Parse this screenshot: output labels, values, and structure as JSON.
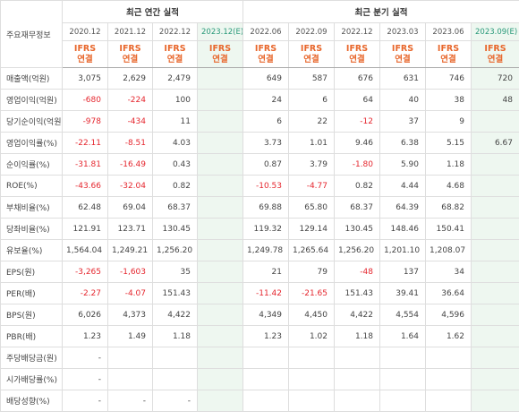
{
  "header": {
    "corner_label": "주요재무정보",
    "annual_group_label": "최근 연간 실적",
    "quarter_group_label": "최근 분기 실적",
    "annual_periods": [
      "2020.12",
      "2021.12",
      "2022.12",
      "2023.12(E)"
    ],
    "quarter_periods": [
      "2022.06",
      "2022.09",
      "2022.12",
      "2023.03",
      "2023.06",
      "2023.09(E)"
    ],
    "ifrs_line1": "IFRS",
    "ifrs_line2": "연결"
  },
  "estimate_columns": [
    3,
    9
  ],
  "rows": [
    {
      "label": "매출액(억원)",
      "values": [
        "3,075",
        "2,629",
        "2,479",
        "",
        "649",
        "587",
        "676",
        "631",
        "746",
        "720"
      ]
    },
    {
      "label": "영업이익(억원)",
      "values": [
        "-680",
        "-224",
        "100",
        "",
        "24",
        "6",
        "64",
        "40",
        "38",
        "48"
      ]
    },
    {
      "label": "당기순이익(억원)",
      "values": [
        "-978",
        "-434",
        "11",
        "",
        "6",
        "22",
        "-12",
        "37",
        "9",
        ""
      ]
    },
    {
      "label": "영업이익률(%)",
      "values": [
        "-22.11",
        "-8.51",
        "4.03",
        "",
        "3.73",
        "1.01",
        "9.46",
        "6.38",
        "5.15",
        "6.67"
      ]
    },
    {
      "label": "순이익률(%)",
      "values": [
        "-31.81",
        "-16.49",
        "0.43",
        "",
        "0.87",
        "3.79",
        "-1.80",
        "5.90",
        "1.18",
        ""
      ]
    },
    {
      "label": "ROE(%)",
      "values": [
        "-43.66",
        "-32.04",
        "0.82",
        "",
        "-10.53",
        "-4.77",
        "0.82",
        "4.44",
        "4.68",
        ""
      ]
    },
    {
      "label": "부채비율(%)",
      "values": [
        "62.48",
        "69.04",
        "68.37",
        "",
        "69.88",
        "65.80",
        "68.37",
        "64.39",
        "68.82",
        ""
      ]
    },
    {
      "label": "당좌비율(%)",
      "values": [
        "121.91",
        "123.71",
        "130.45",
        "",
        "119.32",
        "129.14",
        "130.45",
        "148.46",
        "150.41",
        ""
      ]
    },
    {
      "label": "유보율(%)",
      "values": [
        "1,564.04",
        "1,249.21",
        "1,256.20",
        "",
        "1,249.78",
        "1,265.64",
        "1,256.20",
        "1,201.10",
        "1,208.07",
        ""
      ]
    },
    {
      "label": "EPS(원)",
      "values": [
        "-3,265",
        "-1,603",
        "35",
        "",
        "21",
        "79",
        "-48",
        "137",
        "34",
        ""
      ]
    },
    {
      "label": "PER(배)",
      "values": [
        "-2.27",
        "-4.07",
        "151.43",
        "",
        "-11.42",
        "-21.65",
        "151.43",
        "39.41",
        "36.64",
        ""
      ]
    },
    {
      "label": "BPS(원)",
      "values": [
        "6,026",
        "4,373",
        "4,422",
        "",
        "4,349",
        "4,450",
        "4,422",
        "4,554",
        "4,596",
        ""
      ]
    },
    {
      "label": "PBR(배)",
      "values": [
        "1.23",
        "1.49",
        "1.18",
        "",
        "1.23",
        "1.02",
        "1.18",
        "1.64",
        "1.62",
        ""
      ]
    },
    {
      "label": "주당배당금(원)",
      "values": [
        "-",
        "",
        "",
        "",
        "",
        "",
        "",
        "",
        "",
        ""
      ]
    },
    {
      "label": "시가배당률(%)",
      "values": [
        "-",
        "",
        "",
        "",
        "",
        "",
        "",
        "",
        "",
        ""
      ]
    },
    {
      "label": "배당성향(%)",
      "values": [
        "-",
        "-",
        "-",
        "",
        "",
        "",
        "",
        "",
        "",
        ""
      ]
    }
  ],
  "colors": {
    "negative": "#e5262e",
    "ifrs": "#e8672c",
    "estimate_text": "#2a9a7a",
    "estimate_bg": "#eef7f0"
  }
}
